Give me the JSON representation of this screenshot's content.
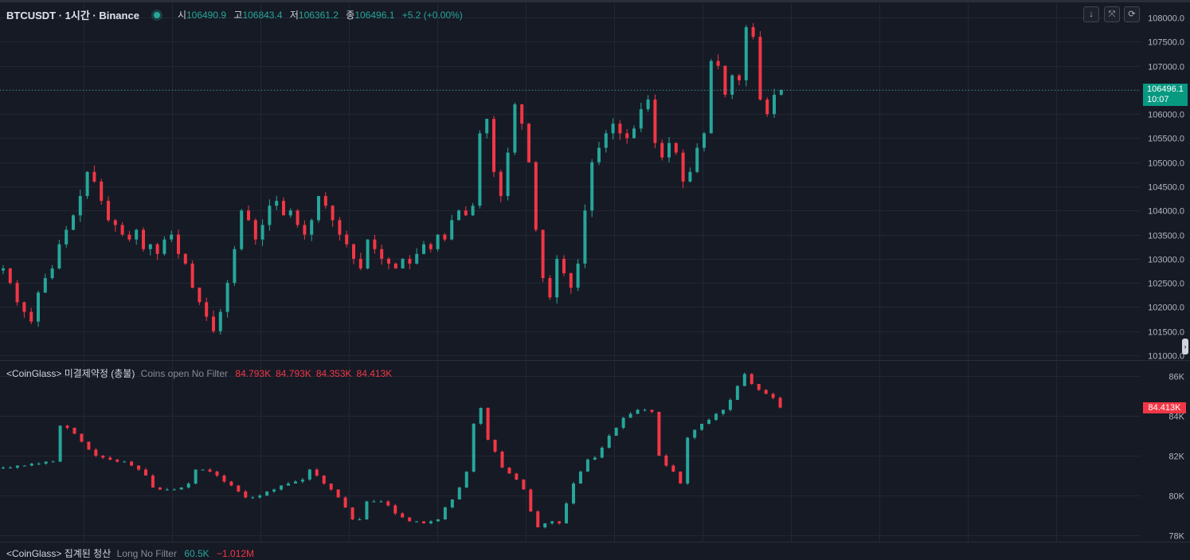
{
  "header": {
    "symbol": "BTCUSDT · 1시간 · Binance",
    "open_label": "시",
    "open": "106490.9",
    "high_label": "고",
    "high": "106843.4",
    "low_label": "저",
    "low": "106361.2",
    "close_label": "종",
    "close": "106496.1",
    "change": "+5.2 (+0.00%)"
  },
  "toolbar": {
    "down_icon": "↓",
    "collapse_icon": "⤧",
    "refresh_icon": "⟳"
  },
  "price_tag": {
    "price": "106496.1",
    "countdown": "10:07"
  },
  "oi_tag": "84.413K",
  "indicator1": {
    "name": "<CoinGlass> 미결제약정 (총불)",
    "settings": "Coins open No Filter",
    "values": [
      "84.793K",
      "84.793K",
      "84.353K",
      "84.413K"
    ]
  },
  "indicator2": {
    "name": "<CoinGlass> 집계된 청산",
    "settings": "Long No Filter",
    "value1": "60.5K",
    "value2": "−1.012M"
  },
  "colors": {
    "up": "#26a69a",
    "down": "#f23645",
    "background": "#161a25",
    "grid": "#232734"
  },
  "chart_data": [
    {
      "type": "candlestick",
      "title": "BTCUSDT · 1시간 · Binance",
      "y_ticks": [
        "108000.0",
        "107500.0",
        "107000.0",
        "106500.0",
        "106000.0",
        "105500.0",
        "105000.0",
        "104500.0",
        "104000.0",
        "103500.0",
        "103000.0",
        "102500.0",
        "102000.0",
        "101500.0",
        "101000.0"
      ],
      "ylim": [
        101000,
        108000
      ],
      "last_price": 106496.1,
      "close_series": [
        102800,
        102500,
        102100,
        101900,
        101700,
        102300,
        102600,
        102800,
        103300,
        103600,
        103900,
        104300,
        104800,
        104600,
        104200,
        103800,
        103700,
        103500,
        103400,
        103600,
        103200,
        103300,
        103100,
        103400,
        103500,
        103100,
        102900,
        102400,
        102100,
        101800,
        101500,
        101900,
        102500,
        103200,
        104000,
        103800,
        103400,
        103700,
        104100,
        104200,
        103900,
        104000,
        103700,
        103500,
        103800,
        104300,
        104100,
        103800,
        103500,
        103300,
        103000,
        102800,
        103400,
        103200,
        103000,
        102900,
        102800,
        103000,
        102900,
        103100,
        103300,
        103200,
        103500,
        103400,
        103800,
        104000,
        103900,
        104100,
        105600,
        105900,
        104800,
        104300,
        105200,
        106200,
        105800,
        105000,
        103600,
        102600,
        102200,
        103000,
        102700,
        102400,
        102900,
        104000,
        105000,
        105300,
        105600,
        105800,
        105600,
        105500,
        105700,
        106100,
        106300,
        105400,
        105100,
        105400,
        105200,
        104600,
        104800,
        105300,
        105600,
        107100,
        107000,
        106400,
        106800,
        106700,
        107800,
        107600,
        106300,
        106000,
        106400,
        106500
      ],
      "close_series_unit": "USDT"
    },
    {
      "type": "candlestick",
      "title": "<CoinGlass> 미결제약정 (총불)",
      "y_ticks": [
        "86K",
        "84K",
        "82K",
        "80K",
        "78K"
      ],
      "ylim": [
        78000,
        86000
      ],
      "last_value": 84413,
      "close_series": [
        81400,
        81400,
        81500,
        81500,
        81600,
        81600,
        81700,
        81700,
        83500,
        83400,
        83100,
        82700,
        82300,
        82000,
        81900,
        81800,
        81700,
        81700,
        81500,
        81300,
        81000,
        80400,
        80300,
        80300,
        80300,
        80400,
        80600,
        81300,
        81300,
        81200,
        81000,
        80700,
        80500,
        80200,
        79900,
        79900,
        80000,
        80200,
        80300,
        80500,
        80600,
        80700,
        80800,
        81300,
        81000,
        80600,
        80300,
        79900,
        79400,
        78800,
        78800,
        79700,
        79700,
        79700,
        79500,
        79100,
        78900,
        78700,
        78700,
        78600,
        78700,
        78800,
        79400,
        79800,
        80400,
        81200,
        83600,
        84400,
        82800,
        82200,
        81400,
        81100,
        80800,
        80300,
        79200,
        78400,
        78600,
        78700,
        78600,
        79600,
        80600,
        81200,
        81800,
        81900,
        82400,
        83000,
        83400,
        83900,
        84100,
        84300,
        84300,
        84200,
        82000,
        81500,
        81200,
        80600,
        82900,
        83300,
        83600,
        83800,
        84100,
        84300,
        84800,
        85500,
        86100,
        85600,
        85300,
        85100,
        84900,
        84413
      ]
    }
  ]
}
